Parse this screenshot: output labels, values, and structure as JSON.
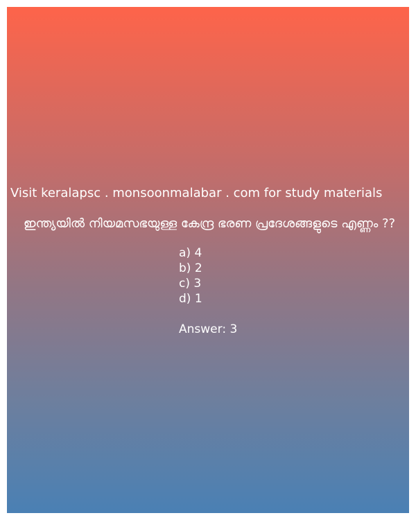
{
  "promo_text": "Visit keralapsc . monsoonmalabar . com for study materials",
  "question": "ഇന്ത്യയിൽ നിയമസഭയുള്ള കേന്ദ്ര ഭരണ പ്രദേശങ്ങളുടെ എണ്ണം ??",
  "options": [
    "a) 4",
    "b) 2",
    "c) 3",
    "d) 1"
  ],
  "answer": "Answer: 3",
  "colors": {
    "gradient_top": "#fe644a",
    "gradient_bottom": "#4a80b4",
    "text": "#ffffff"
  }
}
